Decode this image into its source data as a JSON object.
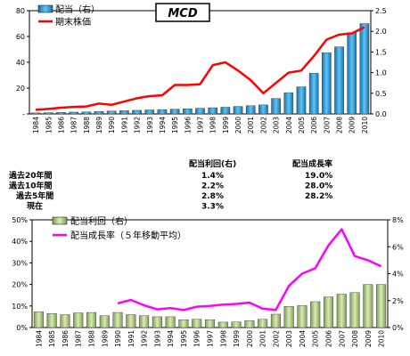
{
  "logo": "MCD",
  "chart_data": [
    {
      "type": "bar",
      "categories": [
        "1984",
        "1985",
        "1986",
        "1987",
        "1988",
        "1989",
        "1990",
        "1991",
        "1992",
        "1993",
        "1994",
        "1995",
        "1996",
        "1997",
        "1998",
        "1999",
        "2000",
        "2001",
        "2002",
        "2003",
        "2004",
        "2005",
        "2006",
        "2007",
        "2008",
        "2009",
        "2010"
      ],
      "series": [
        {
          "name": "配当（右）",
          "type": "bar",
          "axis": "left",
          "color": "#2e9bd6",
          "values": [
            0.8,
            1.0,
            1.2,
            1.4,
            1.6,
            1.9,
            2.2,
            2.5,
            2.8,
            3.1,
            3.4,
            3.7,
            4.0,
            4.4,
            4.8,
            5.2,
            5.8,
            6.4,
            7.0,
            12.0,
            16.5,
            21.0,
            31.5,
            47.5,
            52.0,
            63.0,
            70.0
          ]
        },
        {
          "name": "期末株価",
          "type": "line",
          "axis": "right",
          "color": "#ff0000",
          "values": [
            0.1,
            0.12,
            0.15,
            0.17,
            0.18,
            0.25,
            0.22,
            0.3,
            0.38,
            0.43,
            0.45,
            0.7,
            0.7,
            0.72,
            1.18,
            1.25,
            1.05,
            0.82,
            0.5,
            0.75,
            1.0,
            1.05,
            1.4,
            1.8,
            1.92,
            1.95,
            2.1
          ]
        }
      ],
      "y_left": {
        "min": 0,
        "max": 80,
        "ticks": [
          "-",
          "20",
          "40",
          "60",
          "80"
        ]
      },
      "y_right": {
        "min": 0,
        "max": 2.5,
        "ticks": [
          "0.0",
          "0.5",
          "1.0",
          "1.5",
          "2.0",
          "2.5"
        ]
      },
      "legend": "top-left"
    },
    {
      "type": "bar",
      "categories": [
        "1984",
        "1985",
        "1986",
        "1987",
        "1988",
        "1989",
        "1990",
        "1991",
        "1992",
        "1993",
        "1994",
        "1995",
        "1996",
        "1997",
        "1998",
        "1999",
        "2000",
        "2001",
        "2002",
        "2003",
        "2004",
        "2005",
        "2006",
        "2007",
        "2008",
        "2009",
        "2010"
      ],
      "series": [
        {
          "name": "配当利回（右）",
          "type": "bar",
          "axis": "left",
          "color": "#b5cf8a",
          "values": [
            7.3,
            6.5,
            6.0,
            6.8,
            7.0,
            5.5,
            7.0,
            6.0,
            5.5,
            5.0,
            5.0,
            3.6,
            3.8,
            3.6,
            2.5,
            2.6,
            3.2,
            3.8,
            6.2,
            9.8,
            10.2,
            12.0,
            14.2,
            15.5,
            16.2,
            20.0,
            20.0
          ]
        },
        {
          "name": "配当成長率（５年移動平均）",
          "type": "line",
          "axis": "right",
          "color": "#ff00ff",
          "values": [
            null,
            null,
            null,
            null,
            null,
            null,
            1.8,
            2.05,
            1.65,
            1.35,
            1.45,
            1.3,
            1.55,
            1.6,
            1.7,
            1.75,
            1.85,
            1.4,
            1.3,
            3.1,
            4.0,
            4.4,
            6.1,
            7.3,
            5.3,
            5.0,
            4.55
          ]
        }
      ],
      "y_left": {
        "min": 0,
        "max": 50,
        "ticks": [
          "0%",
          "10%",
          "20%",
          "30%",
          "40%",
          "50%"
        ]
      },
      "y_right": {
        "min": 0,
        "max": 8,
        "ticks": [
          "0%",
          "2%",
          "4%",
          "6%",
          "8%"
        ]
      },
      "legend": "top-left"
    }
  ],
  "stats": {
    "header_yield": "配当利回(右)",
    "header_growth": "配当成長率",
    "rows": [
      {
        "label": "過去20年間",
        "yield": "1.4%",
        "growth": "19.0%"
      },
      {
        "label": "過去10年間",
        "yield": "2.2%",
        "growth": "28.0%"
      },
      {
        "label": "過去5年間",
        "yield": "2.8%",
        "growth": "28.2%"
      },
      {
        "label": "現在",
        "yield": "3.3%",
        "growth": ""
      }
    ]
  }
}
